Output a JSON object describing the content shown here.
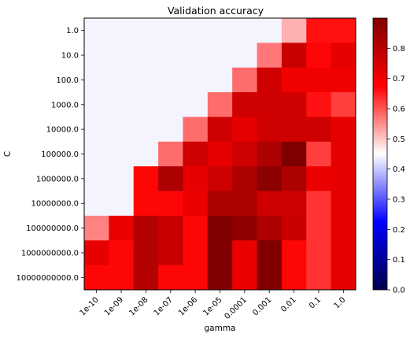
{
  "chart_data": {
    "type": "heatmap",
    "title": "Validation accuracy",
    "xlabel": "gamma",
    "ylabel": "C",
    "x_categories": [
      "1e-10",
      "1e-09",
      "1e-08",
      "1e-07",
      "1e-06",
      "1e-05",
      "0.0001",
      "0.001",
      "0.01",
      "0.1",
      "1.0"
    ],
    "y_categories": [
      "1.0",
      "10.0",
      "100.0",
      "1000.0",
      "10000.0",
      "100000.0",
      "1000000.0",
      "10000000.0",
      "100000000.0",
      "1000000000.0",
      "10000000000.0"
    ],
    "values": [
      [
        0.44,
        0.44,
        0.44,
        0.44,
        0.44,
        0.44,
        0.44,
        0.44,
        0.52,
        0.66,
        0.66
      ],
      [
        0.44,
        0.44,
        0.44,
        0.44,
        0.44,
        0.44,
        0.44,
        0.57,
        0.77,
        0.67,
        0.72
      ],
      [
        0.44,
        0.44,
        0.44,
        0.44,
        0.44,
        0.44,
        0.58,
        0.76,
        0.7,
        0.7,
        0.7
      ],
      [
        0.44,
        0.44,
        0.44,
        0.44,
        0.44,
        0.58,
        0.76,
        0.76,
        0.76,
        0.66,
        0.62
      ],
      [
        0.44,
        0.44,
        0.44,
        0.44,
        0.58,
        0.76,
        0.72,
        0.76,
        0.76,
        0.76,
        0.72
      ],
      [
        0.44,
        0.44,
        0.44,
        0.58,
        0.76,
        0.72,
        0.76,
        0.82,
        0.95,
        0.62,
        0.72
      ],
      [
        0.44,
        0.44,
        0.67,
        0.82,
        0.72,
        0.76,
        0.82,
        0.88,
        0.82,
        0.71,
        0.72
      ],
      [
        0.44,
        0.44,
        0.67,
        0.67,
        0.71,
        0.82,
        0.82,
        0.76,
        0.76,
        0.63,
        0.72
      ],
      [
        0.56,
        0.71,
        0.81,
        0.77,
        0.67,
        0.95,
        0.87,
        0.82,
        0.77,
        0.63,
        0.72
      ],
      [
        0.72,
        0.67,
        0.81,
        0.77,
        0.67,
        0.95,
        0.71,
        0.95,
        0.67,
        0.63,
        0.72
      ],
      [
        0.67,
        0.67,
        0.81,
        0.67,
        0.67,
        0.95,
        0.71,
        0.95,
        0.67,
        0.63,
        0.72
      ]
    ],
    "colormap": "seismic",
    "color_range": [
      0.0,
      0.9
    ],
    "colorbar_ticks": [
      "0.0",
      "0.1",
      "0.2",
      "0.3",
      "0.4",
      "0.5",
      "0.6",
      "0.7",
      "0.8"
    ],
    "grid": false,
    "legend": "colorbar-right"
  }
}
